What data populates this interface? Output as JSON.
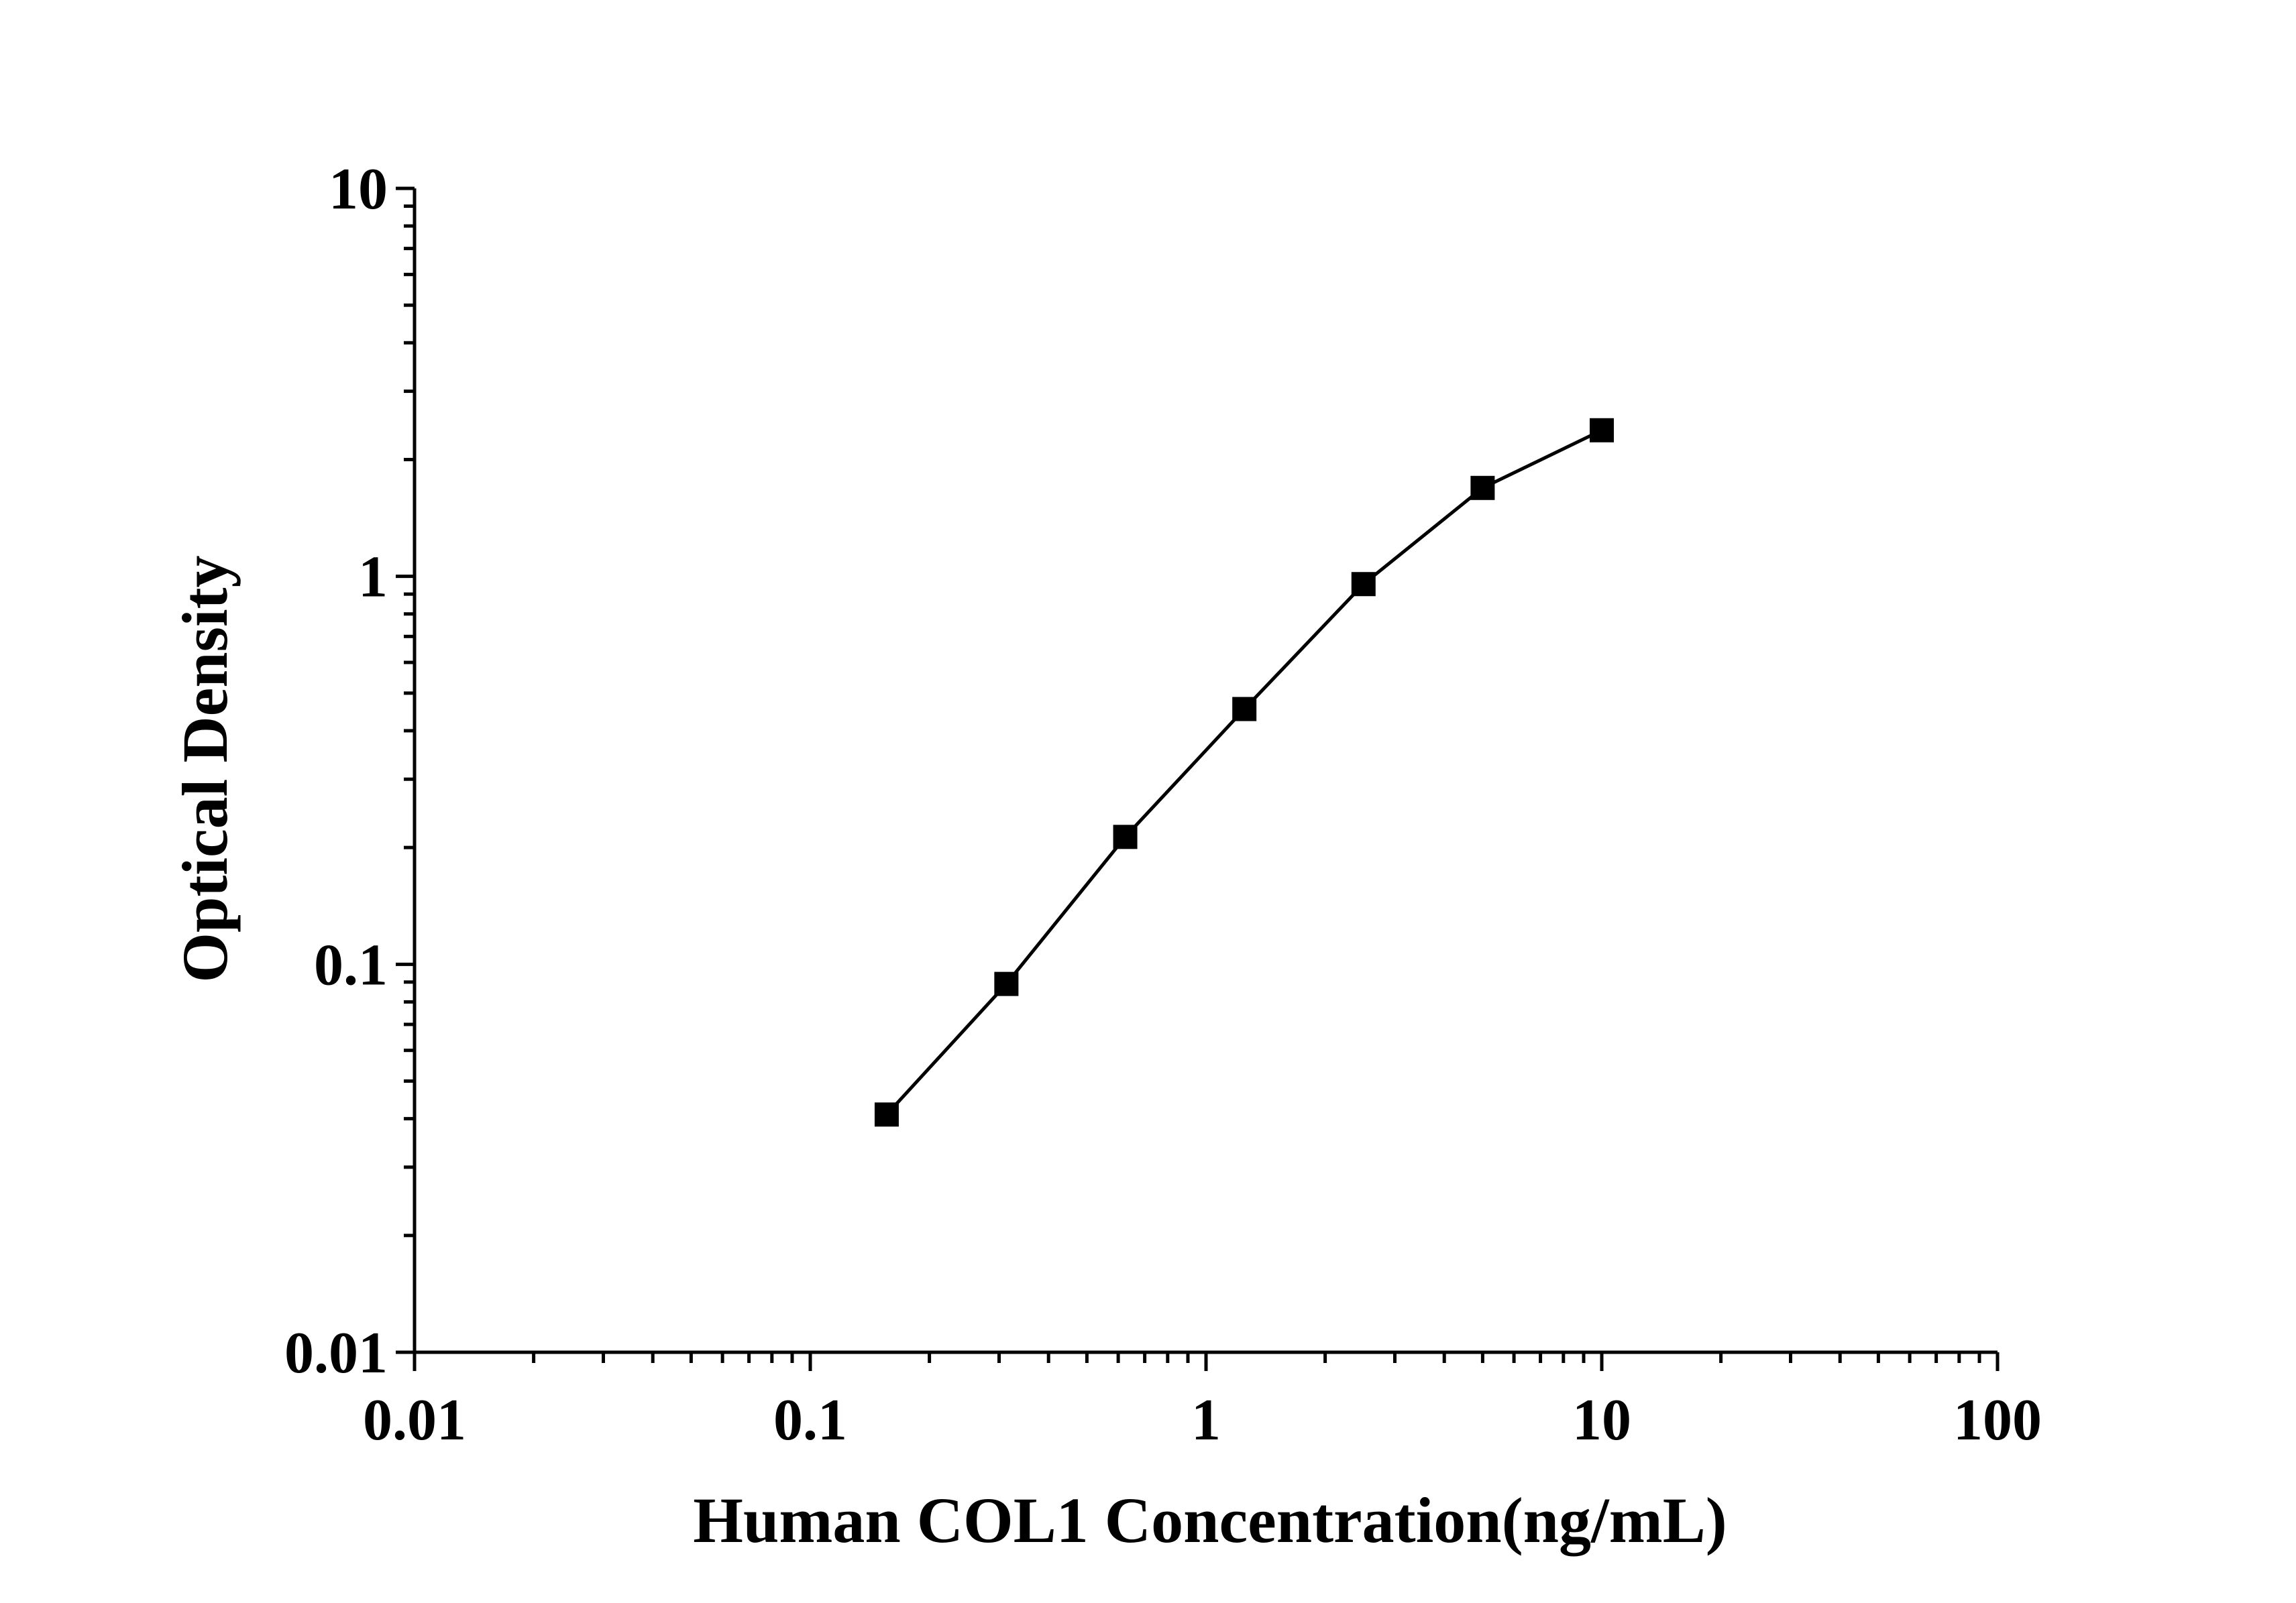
{
  "chart_data": {
    "type": "line",
    "title": "",
    "xlabel": "Human COL1 Concentration(ng/mL)",
    "ylabel": "Optical Density",
    "x_scale": "log",
    "y_scale": "log",
    "xlim": [
      0.01,
      100
    ],
    "ylim": [
      0.01,
      10
    ],
    "x_ticks": [
      "0.01",
      "0.1",
      "1",
      "10",
      "100"
    ],
    "y_ticks": [
      "0.01",
      "0.1",
      "1",
      "10"
    ],
    "grid": false,
    "legend": "none",
    "marker": "square",
    "color": "#000000",
    "series": [
      {
        "x": [
          0.156,
          0.313,
          0.625,
          1.25,
          2.5,
          5,
          10
        ],
        "y": [
          0.041,
          0.089,
          0.213,
          0.455,
          0.955,
          1.69,
          2.38
        ]
      }
    ]
  }
}
